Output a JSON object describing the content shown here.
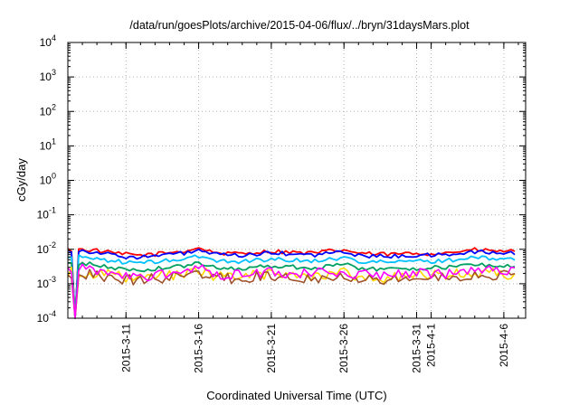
{
  "chart_data": {
    "type": "line",
    "title": "/data/run/goesPlots/archive/2015-04-06/flux/../bryn/31daysMars.plot",
    "xlabel": "Coordinated Universal Time (UTC)",
    "ylabel": "cGy/day",
    "y_scale": "log",
    "ylim": [
      0.0001,
      10000
    ],
    "y_ticks": [
      {
        "value": 0.0001,
        "base": "10",
        "exp": "-4"
      },
      {
        "value": 0.001,
        "base": "10",
        "exp": "-3"
      },
      {
        "value": 0.01,
        "base": "10",
        "exp": "-2"
      },
      {
        "value": 0.1,
        "base": "10",
        "exp": "-1"
      },
      {
        "value": 1,
        "base": "10",
        "exp": "0"
      },
      {
        "value": 10,
        "base": "10",
        "exp": "1"
      },
      {
        "value": 100,
        "base": "10",
        "exp": "2"
      },
      {
        "value": 1000,
        "base": "10",
        "exp": "3"
      },
      {
        "value": 10000,
        "base": "10",
        "exp": "4"
      }
    ],
    "xlim": [
      "2015-03-07T00:00",
      "2015-04-07T12:00"
    ],
    "x_ticks": [
      "2015-3-11",
      "2015-3-16",
      "2015-3-21",
      "2015-3-26",
      "2015-3-31",
      "2015-4-1",
      "2015-4-6"
    ],
    "x_tick_dates": [
      "2015-03-11",
      "2015-03-16",
      "2015-03-21",
      "2015-03-26",
      "2015-03-31",
      "2015-04-01",
      "2015-04-06"
    ],
    "grid": true,
    "x": [
      "2015-03-07",
      "2015-03-08",
      "2015-03-09",
      "2015-03-10",
      "2015-03-11",
      "2015-03-12",
      "2015-03-13",
      "2015-03-14",
      "2015-03-15",
      "2015-03-16",
      "2015-03-17",
      "2015-03-18",
      "2015-03-19",
      "2015-03-20",
      "2015-03-21",
      "2015-03-22",
      "2015-03-23",
      "2015-03-24",
      "2015-03-25",
      "2015-03-26",
      "2015-03-27",
      "2015-03-28",
      "2015-03-29",
      "2015-03-30",
      "2015-03-31",
      "2015-04-01",
      "2015-04-02",
      "2015-04-03",
      "2015-04-04",
      "2015-04-05",
      "2015-04-06",
      "2015-04-07"
    ],
    "series": [
      {
        "color": "#ff0000",
        "values": [
          0.0095,
          0.0098,
          0.0092,
          0.0078,
          0.0071,
          0.0068,
          0.0072,
          0.0081,
          0.0088,
          0.011,
          0.0083,
          0.0074,
          0.0076,
          0.0082,
          0.0087,
          0.0085,
          0.0079,
          0.0077,
          0.0089,
          0.0094,
          0.0078,
          0.0072,
          0.0071,
          0.0074,
          0.0075,
          0.0076,
          0.0079,
          0.0088,
          0.0096,
          0.0091,
          0.0088,
          0.0086
        ]
      },
      {
        "color": "#0000ff",
        "values": [
          0.0086,
          0.0089,
          0.0083,
          0.0068,
          0.0061,
          0.0059,
          0.0063,
          0.0071,
          0.0077,
          0.0092,
          0.0073,
          0.0065,
          0.0067,
          0.0072,
          0.0076,
          0.0075,
          0.0069,
          0.0068,
          0.0078,
          0.0082,
          0.0068,
          0.0063,
          0.0062,
          0.0065,
          0.0066,
          0.0067,
          0.0069,
          0.0077,
          0.0084,
          0.008,
          0.0077,
          0.0075
        ]
      },
      {
        "color": "#00bfff",
        "values": [
          0.0058,
          0.006,
          0.0055,
          0.0046,
          0.0042,
          0.004,
          0.0043,
          0.0048,
          0.0052,
          0.0062,
          0.0049,
          0.0044,
          0.0045,
          0.0049,
          0.0051,
          0.005,
          0.0047,
          0.0046,
          0.0053,
          0.0056,
          0.0046,
          0.0043,
          0.0042,
          0.0044,
          0.0045,
          0.0045,
          0.0047,
          0.0052,
          0.0057,
          0.0054,
          0.0052,
          0.0051
        ]
      },
      {
        "color": "#00a060",
        "values": [
          0.0037,
          0.0039,
          0.0035,
          0.0029,
          0.0026,
          0.0025,
          0.0027,
          0.003,
          0.0033,
          0.0039,
          0.0031,
          0.0028,
          0.0028,
          0.0031,
          0.0032,
          0.0032,
          0.003,
          0.0029,
          0.0034,
          0.0036,
          0.0029,
          0.0027,
          0.0026,
          0.0028,
          0.0028,
          0.0029,
          0.003,
          0.0033,
          0.0036,
          0.0034,
          0.0033,
          0.0032
        ]
      },
      {
        "color": "#ffd700",
        "values": [
          0.0021,
          0.0023,
          0.002,
          0.0017,
          0.0015,
          0.0014,
          0.0016,
          0.0018,
          0.0019,
          0.0023,
          0.0018,
          0.0016,
          0.0016,
          0.0018,
          0.0019,
          0.0018,
          0.0017,
          0.0017,
          0.002,
          0.0021,
          0.0017,
          0.0015,
          0.0015,
          0.0016,
          0.0016,
          0.0017,
          0.0017,
          0.0019,
          0.0021,
          0.002,
          0.0019,
          0.0019
        ]
      },
      {
        "color": "#a0522d",
        "values": [
          0.0019,
          0.002,
          0.0018,
          0.0015,
          0.0013,
          0.0013,
          0.0014,
          0.0016,
          0.0017,
          0.002,
          0.0016,
          0.0014,
          0.0014,
          0.0016,
          0.0017,
          0.0016,
          0.0015,
          0.0015,
          0.0017,
          0.0018,
          0.0015,
          0.0014,
          0.0013,
          0.0014,
          0.0014,
          0.0015,
          0.0015,
          0.0017,
          0.0018,
          0.0017,
          0.0017,
          0.0016
        ]
      },
      {
        "color": "#ff00ff",
        "values": [
          0.0024,
          0.0026,
          0.0023,
          0.0019,
          0.0017,
          0.0016,
          0.0018,
          0.002,
          0.0022,
          0.0026,
          0.0021,
          0.0018,
          0.0019,
          0.0021,
          0.0022,
          0.0021,
          0.002,
          0.0019,
          0.0022,
          0.0024,
          0.0019,
          0.0018,
          0.0017,
          0.0018,
          0.0019,
          0.0019,
          0.002,
          0.0022,
          0.0024,
          0.0023,
          0.0022,
          0.0021
        ]
      }
    ]
  }
}
